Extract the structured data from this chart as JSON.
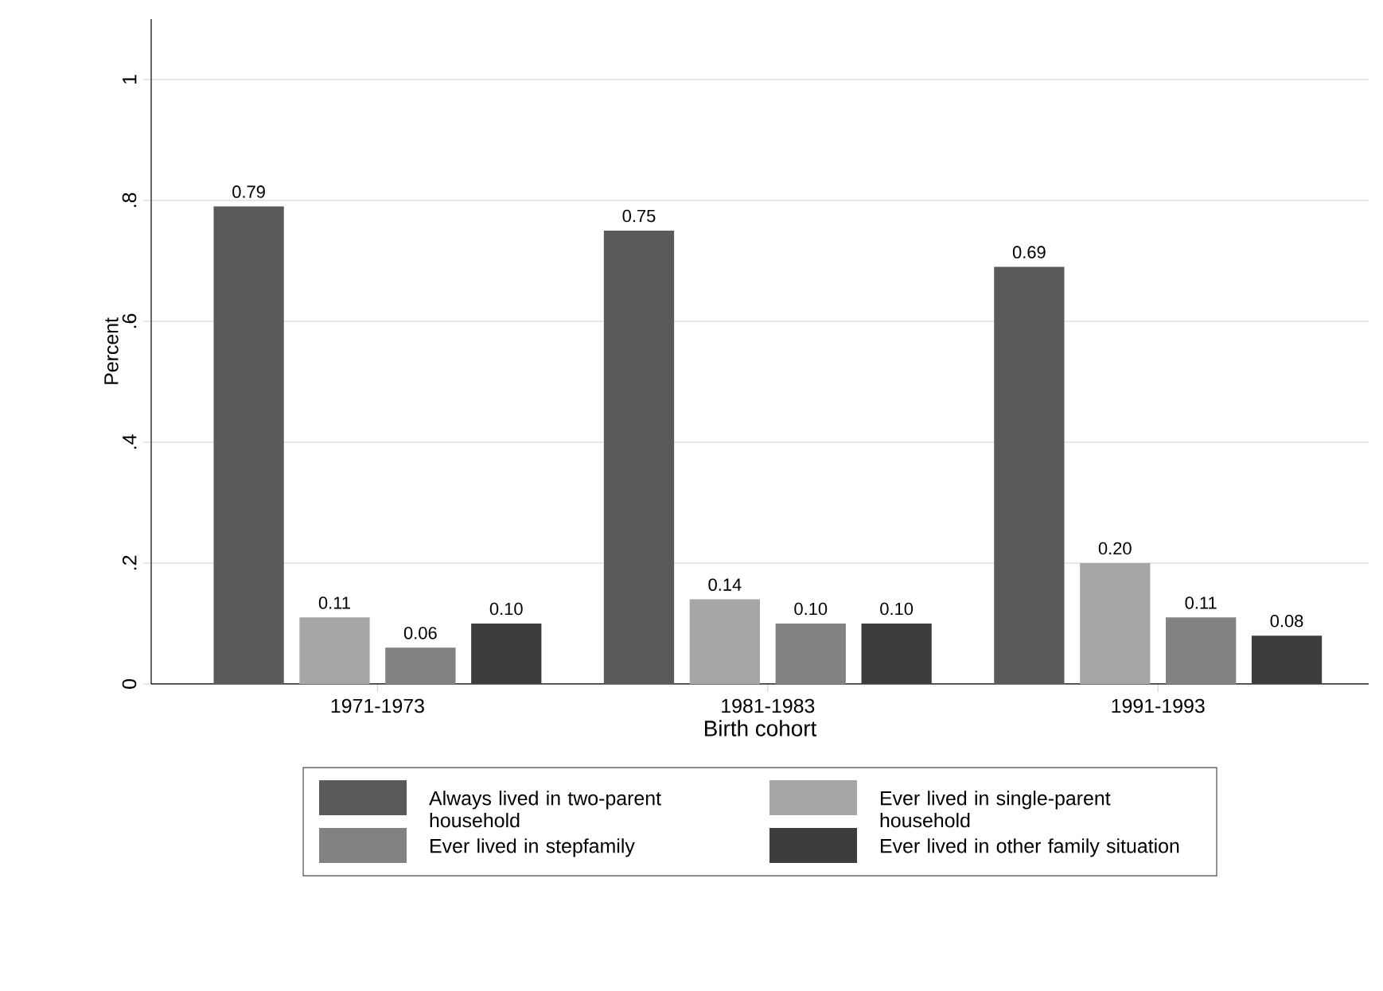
{
  "chart_data": {
    "type": "bar",
    "xlabel": "Birth cohort",
    "ylabel": "Percent",
    "categories": [
      "1971-1973",
      "1981-1983",
      "1991-1993"
    ],
    "series": [
      {
        "name": "Always lived in two-parent household",
        "color": "#5a5a5a",
        "values": [
          0.79,
          0.75,
          0.69
        ],
        "value_labels": [
          "0.79",
          "0.75",
          "0.69"
        ]
      },
      {
        "name": "Ever lived in single-parent household",
        "color": "#a6a6a6",
        "values": [
          0.11,
          0.14,
          0.2
        ],
        "value_labels": [
          "0.11",
          "0.14",
          "0.20"
        ]
      },
      {
        "name": "Ever lived in stepfamily",
        "color": "#828282",
        "values": [
          0.06,
          0.1,
          0.11
        ],
        "value_labels": [
          "0.06",
          "0.10",
          "0.11"
        ]
      },
      {
        "name": "Ever lived in other family situation",
        "color": "#3d3d3d",
        "values": [
          0.1,
          0.1,
          0.08
        ],
        "value_labels": [
          "0.10",
          "0.10",
          "0.08"
        ]
      }
    ],
    "ylim": [
      0,
      1.1
    ],
    "yticks": [
      0,
      {
        "value": 0.2,
        "label": ".2"
      },
      {
        "value": 0.4,
        "label": ".4"
      },
      {
        "value": 0.6,
        "label": ".6"
      },
      {
        "value": 0.8,
        "label": ".8"
      },
      1
    ],
    "grid": "y",
    "legend": "bottom"
  }
}
